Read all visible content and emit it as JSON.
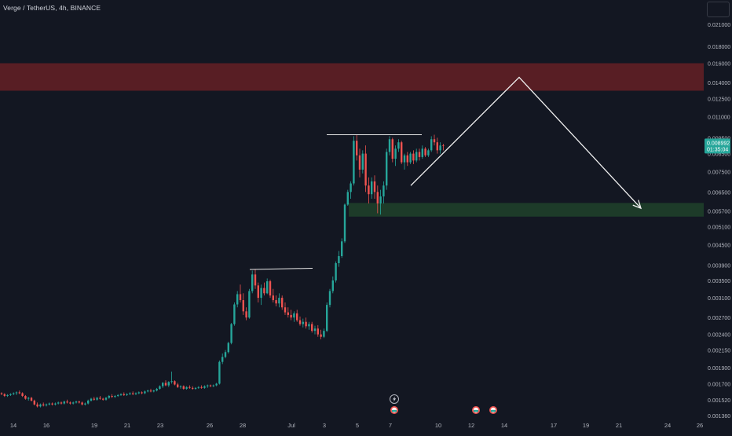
{
  "chart": {
    "symbol_title": "Verge / TetherUS, 4h, BINANCE",
    "price_label": "0.008992",
    "countdown_label": "01:35:04",
    "accent_color": "#26a69a",
    "down_color": "#ef5350",
    "resistance_zone_color": "#5c1f25",
    "support_zone_color": "#1d3d2a"
  },
  "chart_data": {
    "type": "candlestick",
    "interval": "4h",
    "y_scale": "log",
    "y_ticks": [
      "0.021000",
      "0.018000",
      "0.016000",
      "0.014000",
      "0.012500",
      "0.011000",
      "0.009500",
      "0.008500",
      "0.007500",
      "0.006500",
      "0.005700",
      "0.005100",
      "0.004500",
      "0.003900",
      "0.003500",
      "0.003100",
      "0.002700",
      "0.002400",
      "0.002150",
      "0.001900",
      "0.001700",
      "0.001520",
      "0.001360"
    ],
    "x_ticks": [
      "14",
      "16",
      "19",
      "21",
      "23",
      "26",
      "28",
      "Jul",
      "3",
      "5",
      "7",
      "10",
      "12",
      "14",
      "17",
      "19",
      "21",
      "24",
      "26"
    ],
    "last_price": 0.008992,
    "resistance_zone": [
      0.0132,
      0.016
    ],
    "support_zone": [
      0.00547,
      0.00602
    ],
    "projection": [
      0.0068,
      0.0145,
      0.0058
    ],
    "candles": [
      [
        0.00159,
        0.0016,
        0.00157,
        0.00158
      ],
      [
        0.00158,
        0.00159,
        0.00155,
        0.00156
      ],
      [
        0.00156,
        0.00158,
        0.00155,
        0.00157
      ],
      [
        0.00157,
        0.00159,
        0.00156,
        0.00158
      ],
      [
        0.00158,
        0.0016,
        0.00157,
        0.00159
      ],
      [
        0.00159,
        0.00161,
        0.00157,
        0.0016
      ],
      [
        0.0016,
        0.00162,
        0.00158,
        0.00159
      ],
      [
        0.00159,
        0.0016,
        0.00155,
        0.00156
      ],
      [
        0.00156,
        0.00157,
        0.00152,
        0.00153
      ],
      [
        0.00153,
        0.00155,
        0.00151,
        0.00154
      ],
      [
        0.00154,
        0.00155,
        0.0015,
        0.00151
      ],
      [
        0.00151,
        0.00152,
        0.00146,
        0.00147
      ],
      [
        0.00147,
        0.00149,
        0.00144,
        0.00145
      ],
      [
        0.00145,
        0.00148,
        0.00144,
        0.00147
      ],
      [
        0.00147,
        0.00149,
        0.00145,
        0.00146
      ],
      [
        0.00146,
        0.00148,
        0.00145,
        0.00147
      ],
      [
        0.00147,
        0.00149,
        0.00146,
        0.00148
      ],
      [
        0.00148,
        0.00149,
        0.00146,
        0.00147
      ],
      [
        0.00147,
        0.00149,
        0.00146,
        0.00148
      ],
      [
        0.00148,
        0.0015,
        0.00147,
        0.00149
      ],
      [
        0.00149,
        0.0015,
        0.00147,
        0.00148
      ],
      [
        0.00148,
        0.00151,
        0.00147,
        0.0015
      ],
      [
        0.0015,
        0.00152,
        0.00148,
        0.00149
      ],
      [
        0.00149,
        0.0015,
        0.00147,
        0.00148
      ],
      [
        0.00148,
        0.0015,
        0.00147,
        0.00149
      ],
      [
        0.00149,
        0.00151,
        0.00148,
        0.0015
      ],
      [
        0.0015,
        0.00151,
        0.00148,
        0.00149
      ],
      [
        0.00149,
        0.0015,
        0.00146,
        0.00147
      ],
      [
        0.00147,
        0.00149,
        0.00146,
        0.00148
      ],
      [
        0.00148,
        0.00152,
        0.00147,
        0.00151
      ],
      [
        0.00151,
        0.00154,
        0.0015,
        0.00153
      ],
      [
        0.00153,
        0.00155,
        0.00151,
        0.00152
      ],
      [
        0.00152,
        0.00155,
        0.00151,
        0.00154
      ],
      [
        0.00154,
        0.00156,
        0.00152,
        0.00153
      ],
      [
        0.00153,
        0.00154,
        0.00151,
        0.00152
      ],
      [
        0.00152,
        0.00155,
        0.00151,
        0.00154
      ],
      [
        0.00154,
        0.00157,
        0.00153,
        0.00156
      ],
      [
        0.00156,
        0.00158,
        0.00154,
        0.00155
      ],
      [
        0.00155,
        0.00157,
        0.00154,
        0.00156
      ],
      [
        0.00156,
        0.00158,
        0.00155,
        0.00157
      ],
      [
        0.00157,
        0.00159,
        0.00156,
        0.00158
      ],
      [
        0.00158,
        0.0016,
        0.00156,
        0.00157
      ],
      [
        0.00157,
        0.00159,
        0.00156,
        0.00158
      ],
      [
        0.00158,
        0.0016,
        0.00157,
        0.00159
      ],
      [
        0.00159,
        0.00161,
        0.00157,
        0.00158
      ],
      [
        0.00158,
        0.0016,
        0.00157,
        0.00159
      ],
      [
        0.00159,
        0.00161,
        0.00158,
        0.0016
      ],
      [
        0.0016,
        0.00161,
        0.00158,
        0.00159
      ],
      [
        0.00159,
        0.00162,
        0.00158,
        0.00161
      ],
      [
        0.00161,
        0.00163,
        0.0016,
        0.00162
      ],
      [
        0.00162,
        0.00164,
        0.0016,
        0.00161
      ],
      [
        0.00161,
        0.00163,
        0.0016,
        0.00162
      ],
      [
        0.00162,
        0.00165,
        0.00161,
        0.00164
      ],
      [
        0.00164,
        0.00168,
        0.00163,
        0.00167
      ],
      [
        0.00167,
        0.00172,
        0.00165,
        0.00171
      ],
      [
        0.00171,
        0.00174,
        0.00167,
        0.00168
      ],
      [
        0.00168,
        0.00173,
        0.00166,
        0.00172
      ],
      [
        0.00172,
        0.00185,
        0.0017,
        0.00173
      ],
      [
        0.00173,
        0.00174,
        0.00168,
        0.00169
      ],
      [
        0.00169,
        0.00171,
        0.00165,
        0.00166
      ],
      [
        0.00166,
        0.00168,
        0.00164,
        0.00167
      ],
      [
        0.00167,
        0.00168,
        0.00163,
        0.00164
      ],
      [
        0.00164,
        0.00167,
        0.00163,
        0.00166
      ],
      [
        0.00166,
        0.00168,
        0.00164,
        0.00165
      ],
      [
        0.00165,
        0.00167,
        0.00163,
        0.00164
      ],
      [
        0.00164,
        0.00166,
        0.00163,
        0.00165
      ],
      [
        0.00165,
        0.00167,
        0.00164,
        0.00166
      ],
      [
        0.00166,
        0.00168,
        0.00164,
        0.00165
      ],
      [
        0.00165,
        0.00168,
        0.00164,
        0.00167
      ],
      [
        0.00167,
        0.00169,
        0.00165,
        0.00168
      ],
      [
        0.00168,
        0.00169,
        0.00166,
        0.00167
      ],
      [
        0.00167,
        0.00169,
        0.00166,
        0.00168
      ],
      [
        0.00168,
        0.00171,
        0.00167,
        0.0017
      ],
      [
        0.0017,
        0.002,
        0.00169,
        0.00198
      ],
      [
        0.00198,
        0.0021,
        0.00195,
        0.00205
      ],
      [
        0.00205,
        0.00215,
        0.00203,
        0.00212
      ],
      [
        0.00212,
        0.00228,
        0.0021,
        0.00226
      ],
      [
        0.00226,
        0.0026,
        0.00224,
        0.00258
      ],
      [
        0.00258,
        0.003,
        0.00255,
        0.00296
      ],
      [
        0.00296,
        0.00325,
        0.0029,
        0.00318
      ],
      [
        0.00318,
        0.0034,
        0.003,
        0.00305
      ],
      [
        0.00305,
        0.0032,
        0.00275,
        0.00282
      ],
      [
        0.00282,
        0.0029,
        0.00265,
        0.0027
      ],
      [
        0.0027,
        0.0033,
        0.00268,
        0.00325
      ],
      [
        0.00325,
        0.00375,
        0.0032,
        0.00365
      ],
      [
        0.00365,
        0.00378,
        0.0033,
        0.00338
      ],
      [
        0.00338,
        0.00345,
        0.003,
        0.0031
      ],
      [
        0.0031,
        0.0034,
        0.00295,
        0.00332
      ],
      [
        0.00332,
        0.00345,
        0.00315,
        0.0032
      ],
      [
        0.0032,
        0.00355,
        0.00318,
        0.00348
      ],
      [
        0.00348,
        0.00352,
        0.0031,
        0.00315
      ],
      [
        0.00315,
        0.0033,
        0.003,
        0.00305
      ],
      [
        0.00305,
        0.00315,
        0.00292,
        0.00298
      ],
      [
        0.00298,
        0.0032,
        0.0029,
        0.0031
      ],
      [
        0.0031,
        0.00315,
        0.00285,
        0.0029
      ],
      [
        0.0029,
        0.003,
        0.00275,
        0.0028
      ],
      [
        0.0028,
        0.0029,
        0.0027,
        0.00275
      ],
      [
        0.00275,
        0.00285,
        0.00265,
        0.0027
      ],
      [
        0.0027,
        0.00282,
        0.00262,
        0.00278
      ],
      [
        0.00278,
        0.00285,
        0.00262,
        0.00265
      ],
      [
        0.00265,
        0.00272,
        0.00255,
        0.00258
      ],
      [
        0.00258,
        0.00268,
        0.00252,
        0.00262
      ],
      [
        0.00262,
        0.0027,
        0.0025,
        0.00254
      ],
      [
        0.00254,
        0.00262,
        0.00248,
        0.00258
      ],
      [
        0.00258,
        0.00262,
        0.00243,
        0.00246
      ],
      [
        0.00246,
        0.00255,
        0.0024,
        0.0025
      ],
      [
        0.0025,
        0.00256,
        0.00236,
        0.0024
      ],
      [
        0.0024,
        0.00248,
        0.00232,
        0.00236
      ],
      [
        0.00236,
        0.0025,
        0.00234,
        0.00246
      ],
      [
        0.00246,
        0.003,
        0.00244,
        0.00295
      ],
      [
        0.00295,
        0.0033,
        0.0029,
        0.00325
      ],
      [
        0.00325,
        0.0036,
        0.0032,
        0.0035
      ],
      [
        0.0035,
        0.004,
        0.00345,
        0.00395
      ],
      [
        0.00395,
        0.0043,
        0.00385,
        0.00415
      ],
      [
        0.00415,
        0.0047,
        0.0041,
        0.0046
      ],
      [
        0.0046,
        0.006,
        0.00455,
        0.00595
      ],
      [
        0.00595,
        0.0066,
        0.0059,
        0.0065
      ],
      [
        0.0065,
        0.007,
        0.0062,
        0.0069
      ],
      [
        0.0069,
        0.0096,
        0.0068,
        0.0093
      ],
      [
        0.0093,
        0.0097,
        0.0081,
        0.0084
      ],
      [
        0.0084,
        0.0088,
        0.0072,
        0.0076
      ],
      [
        0.0076,
        0.0087,
        0.0074,
        0.0085
      ],
      [
        0.0085,
        0.009,
        0.0065,
        0.0068
      ],
      [
        0.0068,
        0.0072,
        0.006,
        0.0064
      ],
      [
        0.0064,
        0.0072,
        0.0062,
        0.007
      ],
      [
        0.007,
        0.0073,
        0.0062,
        0.0065
      ],
      [
        0.0065,
        0.0068,
        0.0056,
        0.006
      ],
      [
        0.006,
        0.0066,
        0.00555,
        0.0063
      ],
      [
        0.0063,
        0.007,
        0.006,
        0.0068
      ],
      [
        0.0068,
        0.0088,
        0.0066,
        0.0086
      ],
      [
        0.0086,
        0.0096,
        0.0084,
        0.0094
      ],
      [
        0.0094,
        0.0095,
        0.008,
        0.0082
      ],
      [
        0.0082,
        0.009,
        0.0078,
        0.0088
      ],
      [
        0.0088,
        0.0094,
        0.0086,
        0.0092
      ],
      [
        0.0092,
        0.0093,
        0.0079,
        0.008
      ],
      [
        0.008,
        0.0085,
        0.0076,
        0.0084
      ],
      [
        0.0084,
        0.0086,
        0.0078,
        0.008
      ],
      [
        0.008,
        0.0086,
        0.0079,
        0.0085
      ],
      [
        0.0085,
        0.0087,
        0.0079,
        0.0081
      ],
      [
        0.0081,
        0.0088,
        0.008,
        0.0086
      ],
      [
        0.0086,
        0.0088,
        0.0081,
        0.0083
      ],
      [
        0.0083,
        0.009,
        0.0082,
        0.0088
      ],
      [
        0.0088,
        0.0089,
        0.0083,
        0.0084
      ],
      [
        0.0084,
        0.0088,
        0.0083,
        0.0087
      ],
      [
        0.0087,
        0.0096,
        0.0086,
        0.0094
      ],
      [
        0.0094,
        0.0097,
        0.009,
        0.0092
      ],
      [
        0.0092,
        0.0095,
        0.0085,
        0.0087
      ],
      [
        0.0087,
        0.0092,
        0.0085,
        0.009
      ],
      [
        0.009,
        0.0091,
        0.0087,
        0.00899
      ]
    ]
  }
}
